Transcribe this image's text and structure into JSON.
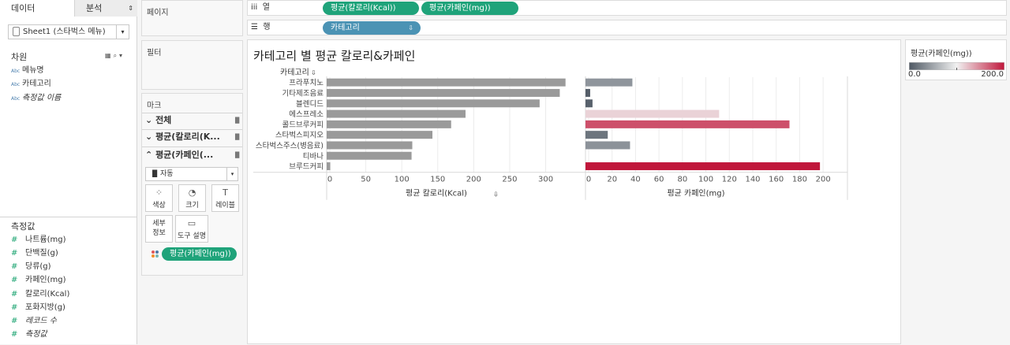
{
  "data_pane": {
    "tabs": [
      "데이터",
      "분석"
    ],
    "datasource": "Sheet1 (스타벅스 메뉴)",
    "dimensions_title": "차원",
    "dimensions": [
      "메뉴명",
      "카테고리",
      "측정값 이름"
    ],
    "measures_title": "측정값",
    "measures": [
      "나트륨(mg)",
      "단백질(g)",
      "당류(g)",
      "카페인(mg)",
      "칼로리(Kcal)",
      "포화지방(g)",
      "레코드 수",
      "측정값"
    ],
    "abc_label": "Abc"
  },
  "cards": {
    "pages": "페이지",
    "filters": "필터",
    "marks": "마크",
    "marks_rows": [
      "전체",
      "평균(칼로리(K...",
      "평균(카페인(..."
    ],
    "mark_type": "자동",
    "buttons": {
      "color": "색상",
      "size": "크기",
      "label": "레이블",
      "detail": "세부 정보",
      "tooltip": "도구 설명"
    },
    "color_pill": "평균(카페인(mg))"
  },
  "shelves": {
    "columns_label": "열",
    "rows_label": "행",
    "columns_pills": [
      "평균(칼로리(Kcal))",
      "평균(카페인(mg))"
    ],
    "rows_pill": "카테고리"
  },
  "viz": {
    "title": "카테고리 별 평균 칼로리&카페인"
  },
  "legend": {
    "title": "평균(카페인(mg))",
    "min": "0.0",
    "max": "200.0"
  },
  "chart_data": {
    "type": "bar",
    "orientation": "horizontal",
    "row_header": "카테고리",
    "categories": [
      "프라푸치노",
      "기타제조음료",
      "블렌디드",
      "에스프레소",
      "콜드브루커피",
      "스타벅스피지오",
      "스타벅스주스(병음료)",
      "티바나",
      "브루드커피"
    ],
    "series": [
      {
        "name": "평균 칼로리(Kcal)",
        "values": [
          332,
          324,
          296,
          193,
          173,
          147,
          119,
          118,
          5
        ],
        "xlim": [
          0,
          340
        ],
        "ticks": [
          0,
          50,
          100,
          150,
          200,
          250,
          300
        ],
        "color": "#9a9a9a"
      },
      {
        "name": "평균 카페인(mg)",
        "values": [
          40,
          4,
          6,
          114,
          174,
          19,
          38,
          0,
          200
        ],
        "xlim": [
          0,
          210
        ],
        "ticks": [
          0,
          20,
          40,
          60,
          80,
          100,
          120,
          140,
          160,
          180,
          200
        ]
      }
    ],
    "color_scale": {
      "min": 0,
      "mid": 100,
      "max": 200,
      "colors": [
        "#4e5863",
        "#f1f1f1",
        "#c0163a"
      ]
    },
    "grid": true,
    "legend": "right"
  }
}
